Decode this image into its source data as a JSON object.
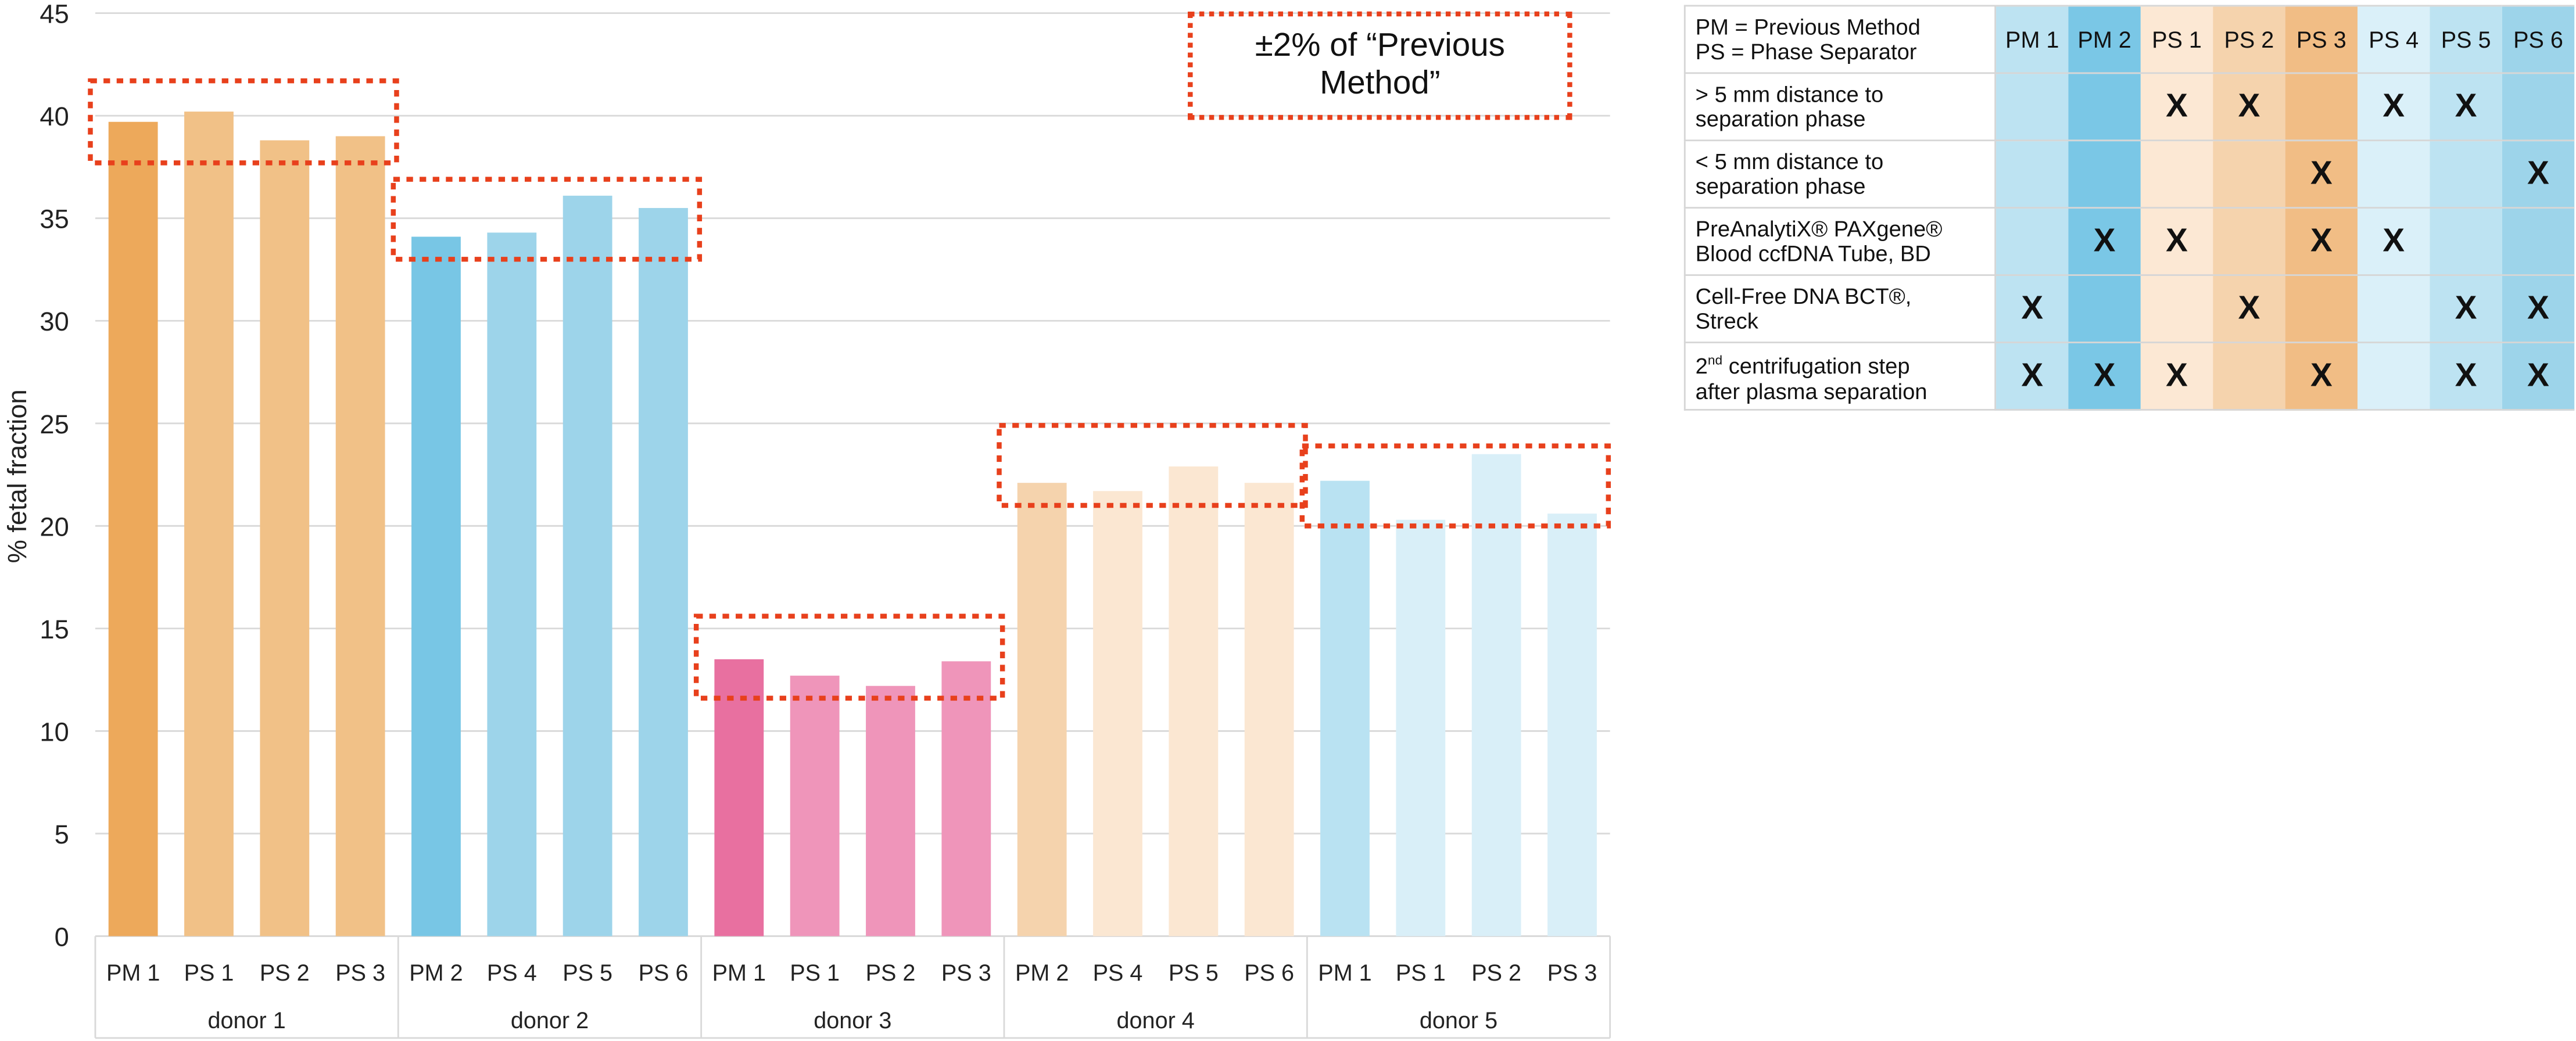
{
  "chart_data": {
    "type": "bar",
    "title": "",
    "ylabel": "% fetal fraction",
    "xlabel": "",
    "ylim": [
      0,
      45
    ],
    "yticks": [
      0,
      5,
      10,
      15,
      20,
      25,
      30,
      35,
      40,
      45
    ],
    "grid": true,
    "groups": [
      {
        "name": "donor 1",
        "categories": [
          "PM 1",
          "PS 1",
          "PS 2",
          "PS 3"
        ],
        "values": [
          39.7,
          40.2,
          38.8,
          39.0
        ],
        "colors": [
          "#EDA95B",
          "#F1C187",
          "#F1C187",
          "#F1C187"
        ],
        "tolerance_band": [
          37.7,
          41.7
        ]
      },
      {
        "name": "donor 2",
        "categories": [
          "PM 2",
          "PS 4",
          "PS 5",
          "PS 6"
        ],
        "values": [
          34.1,
          34.3,
          36.1,
          35.5
        ],
        "colors": [
          "#78C6E5",
          "#9DD4EA",
          "#9DD4EA",
          "#9DD4EA"
        ],
        "tolerance_band": [
          33.0,
          36.9
        ]
      },
      {
        "name": "donor 3",
        "categories": [
          "PM 1",
          "PS 1",
          "PS 2",
          "PS 3"
        ],
        "values": [
          13.5,
          12.7,
          12.2,
          13.4
        ],
        "colors": [
          "#E870A0",
          "#EF95BA",
          "#EF95BA",
          "#EF95BA"
        ],
        "tolerance_band": [
          11.6,
          15.6
        ]
      },
      {
        "name": "donor 4",
        "categories": [
          "PM 2",
          "PS 4",
          "PS 5",
          "PS 6"
        ],
        "values": [
          22.1,
          21.7,
          22.9,
          22.1
        ],
        "colors": [
          "#F5D3AD",
          "#FBE7D2",
          "#FBE7D2",
          "#FBE7D2"
        ],
        "tolerance_band": [
          21.0,
          24.9
        ]
      },
      {
        "name": "donor 5",
        "categories": [
          "PM 1",
          "PS 1",
          "PS 2",
          "PS 3"
        ],
        "values": [
          22.2,
          20.3,
          23.5,
          20.6
        ],
        "colors": [
          "#B9E2F2",
          "#D9EFF8",
          "#D9EFF8",
          "#D9EFF8"
        ],
        "tolerance_band": [
          20.0,
          23.9
        ]
      }
    ],
    "annotation": "±2% of “Previous Method”",
    "annotation_color": "#E8401C"
  },
  "legend_table": {
    "legend_lines": [
      "PM = Previous Method",
      "PS = Phase Separator"
    ],
    "columns": [
      "PM 1",
      "PM 2",
      "PS 1",
      "PS 2",
      "PS 3",
      "PS 4",
      "PS 5",
      "PS 6"
    ],
    "column_colors": [
      "#BDE3F2",
      "#7AC7E6",
      "#FCE8D4",
      "#F5D3AD",
      "#F1BD85",
      "#DAF0F9",
      "#BDE3F2",
      "#9DD4EA"
    ],
    "mark": "X",
    "rows": [
      {
        "label_lines": [
          "> 5 mm distance to",
          "separation phase"
        ],
        "marks": [
          0,
          0,
          1,
          1,
          0,
          1,
          1,
          0
        ]
      },
      {
        "label_lines": [
          "< 5 mm distance to",
          "separation phase"
        ],
        "marks": [
          0,
          0,
          0,
          0,
          1,
          0,
          0,
          1
        ]
      },
      {
        "label_lines": [
          "PreAnalytiX® PAXgene®",
          "Blood ccfDNA Tube, BD"
        ],
        "marks": [
          0,
          1,
          1,
          0,
          1,
          1,
          0,
          0
        ]
      },
      {
        "label_lines": [
          "Cell-Free DNA BCT®,",
          "Streck"
        ],
        "marks": [
          1,
          0,
          0,
          1,
          0,
          0,
          1,
          1
        ]
      },
      {
        "label_lines": [
          "2nd centrifugation step",
          "after plasma separation"
        ],
        "marks": [
          1,
          1,
          1,
          0,
          1,
          0,
          1,
          1
        ]
      }
    ]
  }
}
